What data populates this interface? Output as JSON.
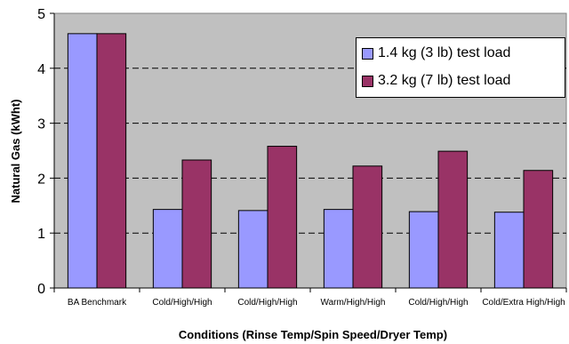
{
  "chart_data": {
    "type": "bar",
    "categories": [
      "BA Benchmark",
      "Cold/High/High",
      "Cold/High/High",
      "Warm/High/High",
      "Cold/High/High",
      "Cold/Extra High/High"
    ],
    "series": [
      {
        "name": "1.4 kg (3 lb) test load",
        "values": [
          4.63,
          1.43,
          1.41,
          1.43,
          1.39,
          1.38
        ],
        "color": "#9999ff"
      },
      {
        "name": "3.2 kg (7 lb) test load",
        "values": [
          4.63,
          2.33,
          2.58,
          2.22,
          2.49,
          2.14
        ],
        "color": "#993366"
      }
    ],
    "title": "",
    "xlabel": "Conditions (Rinse Temp/Spin Speed/Dryer Temp)",
    "ylabel": "Natural Gas (kWht)",
    "ylim": [
      0,
      5
    ],
    "yticks": [
      0,
      1,
      2,
      3,
      4,
      5
    ],
    "grid": "horizontal dashed",
    "legend_position": "top-right",
    "plot_background": "#c0c0c0"
  }
}
